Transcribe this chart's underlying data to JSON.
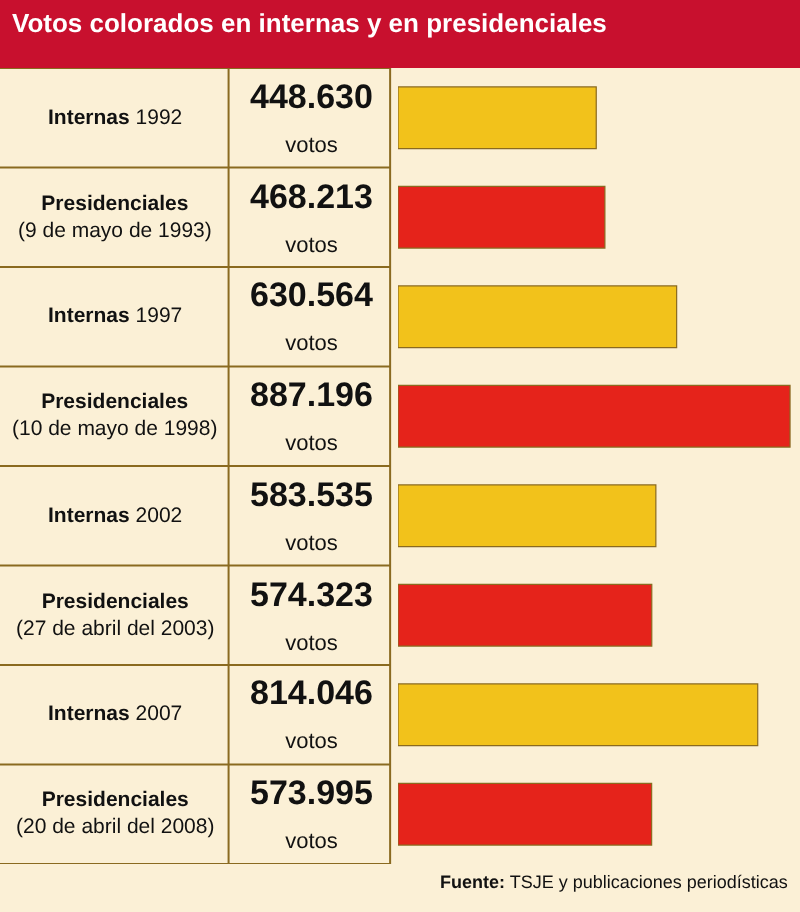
{
  "chart_data": {
    "type": "bar",
    "orientation": "horizontal",
    "title": "Votos colorados en internas y en presidenciales",
    "categories": [
      "Internas 1992",
      "Presidenciales\n(9 de mayo de 1993)",
      "Internas 1997",
      "Presidenciales\n(10 de mayo de 1998)",
      "Internas 2002",
      "Presidenciales\n(27 de abril del 2003)",
      "Internas 2007",
      "Presidenciales\n(20 de abril del 2008)"
    ],
    "values": [
      448630,
      468213,
      630564,
      887196,
      583535,
      574323,
      814046,
      573995
    ],
    "value_labels": [
      "448.630\nvotos",
      "468.213\nvotos",
      "630.564\nvotos",
      "887.196\nvotos",
      "583.535\nvotos",
      "574.323\nvotos",
      "814.046\nvotos",
      "573.995\nvotos"
    ],
    "colors": [
      "#f2c21b",
      "#e5231b",
      "#f2c21b",
      "#e5231b",
      "#f2c21b",
      "#e5231b",
      "#f2c21b",
      "#e5231b"
    ],
    "annotations": [
      "Fuente: TSJE y publicaciones periodísticas"
    ],
    "legend": false
  }
}
